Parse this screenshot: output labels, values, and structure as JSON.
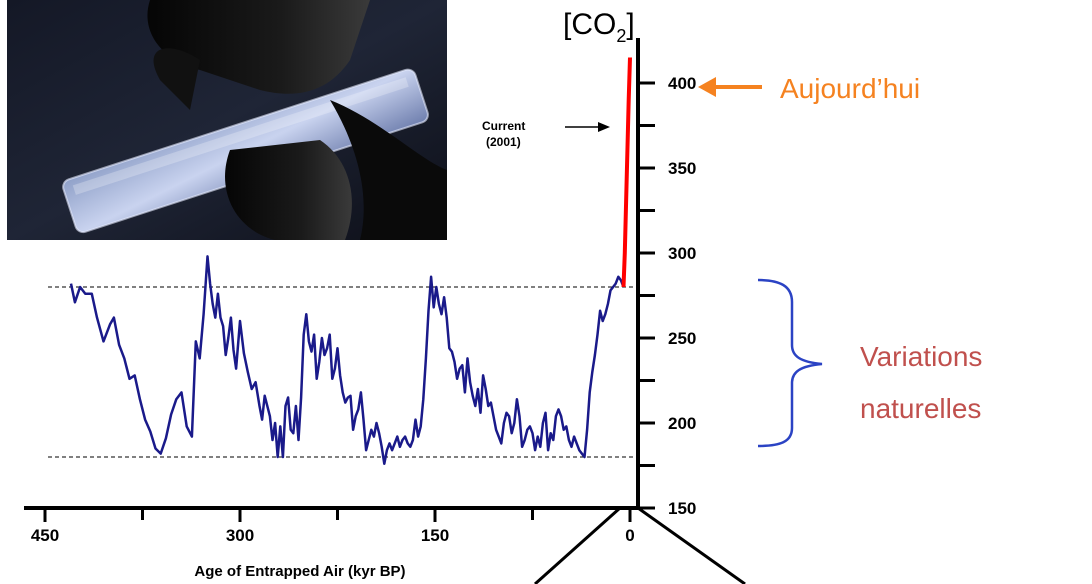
{
  "colors": {
    "series": "#1a1a8a",
    "recent": "#ff0000",
    "today": "#f58220",
    "brace": "#2b43c4",
    "natural": "#c0504d"
  },
  "icons": {
    "photo": "ice-core-photo",
    "today_arrow": "arrow-left-icon",
    "current_arrow": "arrow-right-icon"
  },
  "chart_data": {
    "type": "line",
    "y_axis_title": "[CO2]",
    "xlabel": "Age of Entrapped Air (kyr BP)",
    "xlim": [
      450,
      0
    ],
    "ylim": [
      150,
      420
    ],
    "x_ticks": [
      {
        "value": 450,
        "label": "450"
      },
      {
        "value": 300,
        "label": "300"
      },
      {
        "value": 150,
        "label": "150"
      },
      {
        "value": 0,
        "label": "0"
      }
    ],
    "y_ticks": [
      {
        "value": 150,
        "label": "150"
      },
      {
        "value": 200,
        "label": "200"
      },
      {
        "value": 250,
        "label": "250"
      },
      {
        "value": 300,
        "label": "300"
      },
      {
        "value": 350,
        "label": "350"
      },
      {
        "value": 400,
        "label": "400"
      }
    ],
    "y_minor_ticks": [
      175,
      225,
      275,
      325,
      375
    ],
    "x_minor_ticks": [
      375,
      225,
      75
    ],
    "reference_lines": [
      280,
      180
    ],
    "series": [
      {
        "x": [
          430,
          427,
          423,
          419,
          414,
          410,
          405,
          400,
          397,
          393,
          389,
          385,
          381,
          377,
          373,
          369,
          365,
          361,
          357,
          353,
          349,
          345,
          341,
          337,
          334,
          331,
          328,
          325,
          323,
          321,
          319,
          317,
          315,
          313,
          311,
          309,
          307,
          305,
          303,
          300,
          297,
          294,
          291,
          288,
          285,
          283,
          281,
          279,
          277,
          275,
          273,
          271,
          269,
          267,
          265,
          263,
          261,
          259,
          257,
          255,
          253,
          251,
          249,
          247,
          245,
          243,
          241,
          239,
          237,
          235,
          233,
          231,
          229,
          227,
          225,
          223,
          221,
          219,
          217,
          215,
          213,
          211,
          209,
          207,
          205,
          203,
          201,
          199,
          197,
          195,
          193,
          191,
          189,
          187,
          185,
          183,
          181,
          179,
          177,
          175,
          173,
          171,
          169,
          167,
          165,
          163,
          161,
          159,
          157,
          155,
          153,
          151,
          149,
          147,
          145,
          143,
          141,
          139,
          137,
          135,
          133,
          131,
          129,
          127,
          125,
          123,
          121,
          119,
          117,
          115,
          113,
          111,
          109,
          107,
          105,
          103,
          101,
          99,
          97,
          95,
          93,
          91,
          89,
          87,
          85,
          83,
          81,
          79,
          77,
          75,
          73,
          71,
          69,
          67,
          65,
          63,
          61,
          59,
          57,
          55,
          53,
          51,
          49,
          47,
          45,
          43,
          41,
          39,
          37,
          35,
          33,
          31,
          29,
          27,
          25,
          23,
          21,
          19,
          17,
          15,
          13,
          11,
          9,
          7,
          5
        ],
        "values": [
          282,
          271,
          280,
          276,
          276,
          262,
          248,
          258,
          262,
          246,
          238,
          226,
          228,
          214,
          202,
          195,
          185,
          182,
          191,
          205,
          214,
          218,
          198,
          192,
          248,
          238,
          264,
          298,
          282,
          270,
          262,
          276,
          262,
          257,
          240,
          250,
          262,
          243,
          232,
          260,
          241,
          230,
          220,
          224,
          210,
          202,
          216,
          210,
          204,
          190,
          200,
          180,
          198,
          180,
          210,
          215,
          196,
          194,
          210,
          190,
          215,
          252,
          264,
          248,
          242,
          252,
          226,
          236,
          250,
          240,
          244,
          252,
          226,
          232,
          244,
          228,
          218,
          212,
          215,
          216,
          196,
          204,
          208,
          218,
          202,
          184,
          190,
          196,
          192,
          200,
          194,
          186,
          176,
          184,
          188,
          184,
          188,
          192,
          186,
          190,
          192,
          188,
          186,
          190,
          202,
          192,
          198,
          214,
          238,
          266,
          286,
          268,
          280,
          270,
          264,
          274,
          262,
          244,
          242,
          236,
          226,
          232,
          234,
          218,
          238,
          224,
          216,
          210,
          220,
          206,
          228,
          220,
          210,
          212,
          204,
          196,
          192,
          188,
          200,
          206,
          204,
          194,
          200,
          214,
          204,
          186,
          190,
          196,
          198,
          194,
          184,
          192,
          186,
          200,
          206,
          184,
          194,
          190,
          204,
          208,
          204,
          196,
          198,
          190,
          186,
          192,
          188,
          184,
          182,
          180,
          196,
          218,
          230,
          240,
          252,
          266,
          260,
          264,
          270,
          278,
          280,
          282,
          286,
          284,
          280
        ]
      },
      {
        "x": [
          5,
          4,
          3,
          2,
          1,
          0
        ],
        "values": [
          280,
          300,
          330,
          360,
          390,
          415
        ]
      }
    ],
    "annotations": [
      {
        "text": "Current",
        "sub": "(2001)",
        "points_to_value": 373
      }
    ]
  },
  "labels": {
    "today": "Aujourd’hui",
    "natural_line1": "Variations",
    "natural_line2": "naturelles"
  }
}
